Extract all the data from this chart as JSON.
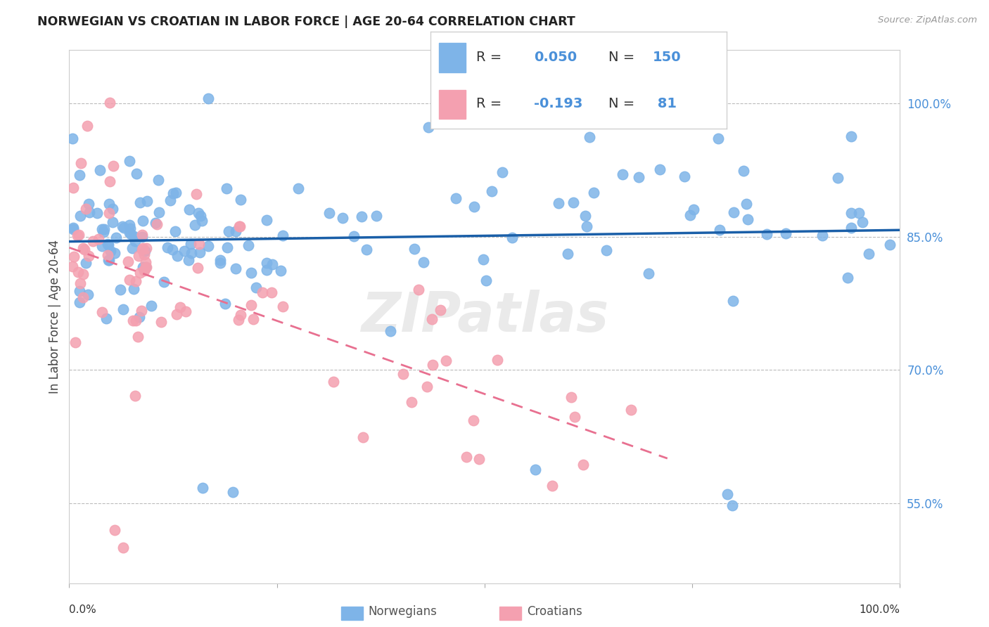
{
  "title": "NORWEGIAN VS CROATIAN IN LABOR FORCE | AGE 20-64 CORRELATION CHART",
  "source": "Source: ZipAtlas.com",
  "ylabel": "In Labor Force | Age 20-64",
  "watermark": "ZIPatlas",
  "r_norwegian": 0.05,
  "n_norwegian": 150,
  "r_croatian": -0.193,
  "n_croatian": 81,
  "norwegian_color": "#7EB4E8",
  "croatian_color": "#F4A0B0",
  "norwegian_line_color": "#1A5FA8",
  "croatian_line_color": "#E87090",
  "croatian_dash_color": "#C8A0A8",
  "background_color": "#FFFFFF",
  "grid_color": "#BBBBBB",
  "x_min": 0.0,
  "x_max": 1.0,
  "y_min": 0.46,
  "y_max": 1.06,
  "y_ticks": [
    0.55,
    0.7,
    0.85,
    1.0
  ],
  "y_tick_labels": [
    "55.0%",
    "70.0%",
    "85.0%",
    "100.0%"
  ]
}
